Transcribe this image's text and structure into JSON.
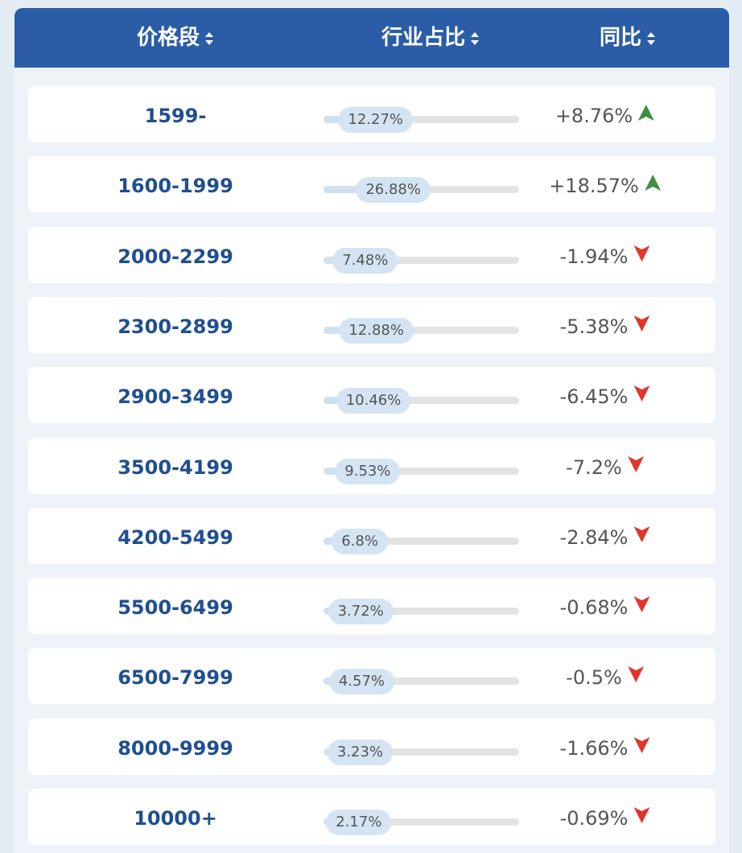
{
  "table": {
    "headers": [
      "价格段",
      "行业占比",
      "同比"
    ],
    "rows": [
      [
        "1599-",
        "12.27%",
        "+8.76%"
      ],
      [
        "1600-1999",
        "26.88%",
        "+18.57%"
      ],
      [
        "2000-2299",
        "7.48%",
        "-1.94%"
      ],
      [
        "2300-2899",
        "12.88%",
        "-5.38%"
      ],
      [
        "2900-3499",
        "10.46%",
        "-6.45%"
      ],
      [
        "3500-4199",
        "9.53%",
        "-7.2%"
      ],
      [
        "4200-5499",
        "6.8%",
        "-2.84%"
      ],
      [
        "5500-6499",
        "3.72%",
        "-0.68%"
      ],
      [
        "6500-7999",
        "4.57%",
        "-0.5%"
      ],
      [
        "8000-9999",
        "3.23%",
        "-1.66%"
      ],
      [
        "10000+",
        "2.17%",
        "-0.69%"
      ]
    ]
  }
}
